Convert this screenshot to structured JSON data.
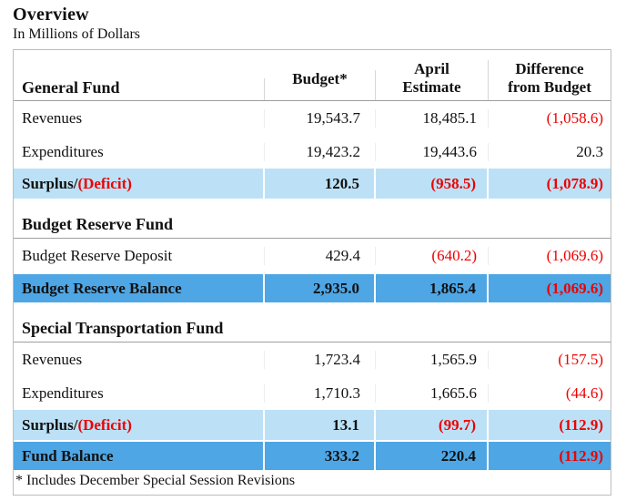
{
  "page": {
    "title": "Overview",
    "subtitle": "In Millions of Dollars",
    "footnote": "* Includes December Special Session Revisions"
  },
  "colors": {
    "highlight_light": "#BCE1F6",
    "highlight_dark": "#4EA6E5",
    "negative": "#EE0000",
    "text": "#111111",
    "table_border": "#BDBDBD",
    "rule": "#9E9E9E"
  },
  "table": {
    "header": {
      "section_label": "General Fund",
      "col_budget": "Budget*",
      "col_april": "April\nEstimate",
      "col_diff": "Difference\nfrom Budget"
    },
    "rows": [
      {
        "type": "data",
        "label": "Revenues",
        "cells": [
          {
            "v": "19,543.7",
            "neg": false
          },
          {
            "v": "18,485.1",
            "neg": false
          },
          {
            "v": "(1,058.6)",
            "neg": true
          }
        ]
      },
      {
        "type": "data",
        "label": "Expenditures",
        "cells": [
          {
            "v": "19,423.2",
            "neg": false
          },
          {
            "v": "19,443.6",
            "neg": false
          },
          {
            "v": "20.3",
            "neg": false
          }
        ]
      },
      {
        "type": "total-light",
        "label": "Surplus/",
        "label_red": "(Deficit)",
        "cells": [
          {
            "v": "120.5",
            "neg": false
          },
          {
            "v": "(958.5)",
            "neg": true
          },
          {
            "v": "(1,078.9)",
            "neg": true
          }
        ]
      },
      {
        "type": "section",
        "label": "Budget Reserve Fund"
      },
      {
        "type": "data",
        "label": "Budget Reserve Deposit",
        "cells": [
          {
            "v": "429.4",
            "neg": false
          },
          {
            "v": "(640.2)",
            "neg": true
          },
          {
            "v": "(1,069.6)",
            "neg": true
          }
        ]
      },
      {
        "type": "total-dark",
        "label": "Budget Reserve Balance",
        "cells": [
          {
            "v": "2,935.0",
            "neg": false
          },
          {
            "v": "1,865.4",
            "neg": false
          },
          {
            "v": "(1,069.6)",
            "neg": true
          }
        ]
      },
      {
        "type": "section",
        "label": "Special Transportation Fund"
      },
      {
        "type": "data",
        "label": "Revenues",
        "cells": [
          {
            "v": "1,723.4",
            "neg": false
          },
          {
            "v": "1,565.9",
            "neg": false
          },
          {
            "v": "(157.5)",
            "neg": true
          }
        ]
      },
      {
        "type": "data",
        "label": "Expenditures",
        "cells": [
          {
            "v": "1,710.3",
            "neg": false
          },
          {
            "v": "1,665.6",
            "neg": false
          },
          {
            "v": "(44.6)",
            "neg": true
          }
        ]
      },
      {
        "type": "total-light",
        "label": "Surplus/",
        "label_red": "(Deficit)",
        "cells": [
          {
            "v": "13.1",
            "neg": false
          },
          {
            "v": "(99.7)",
            "neg": true
          },
          {
            "v": "(112.9)",
            "neg": true
          }
        ]
      },
      {
        "type": "total-dark",
        "label": "Fund Balance",
        "cells": [
          {
            "v": "333.2",
            "neg": false
          },
          {
            "v": "220.4",
            "neg": false
          },
          {
            "v": "(112.9)",
            "neg": true
          }
        ]
      }
    ]
  }
}
